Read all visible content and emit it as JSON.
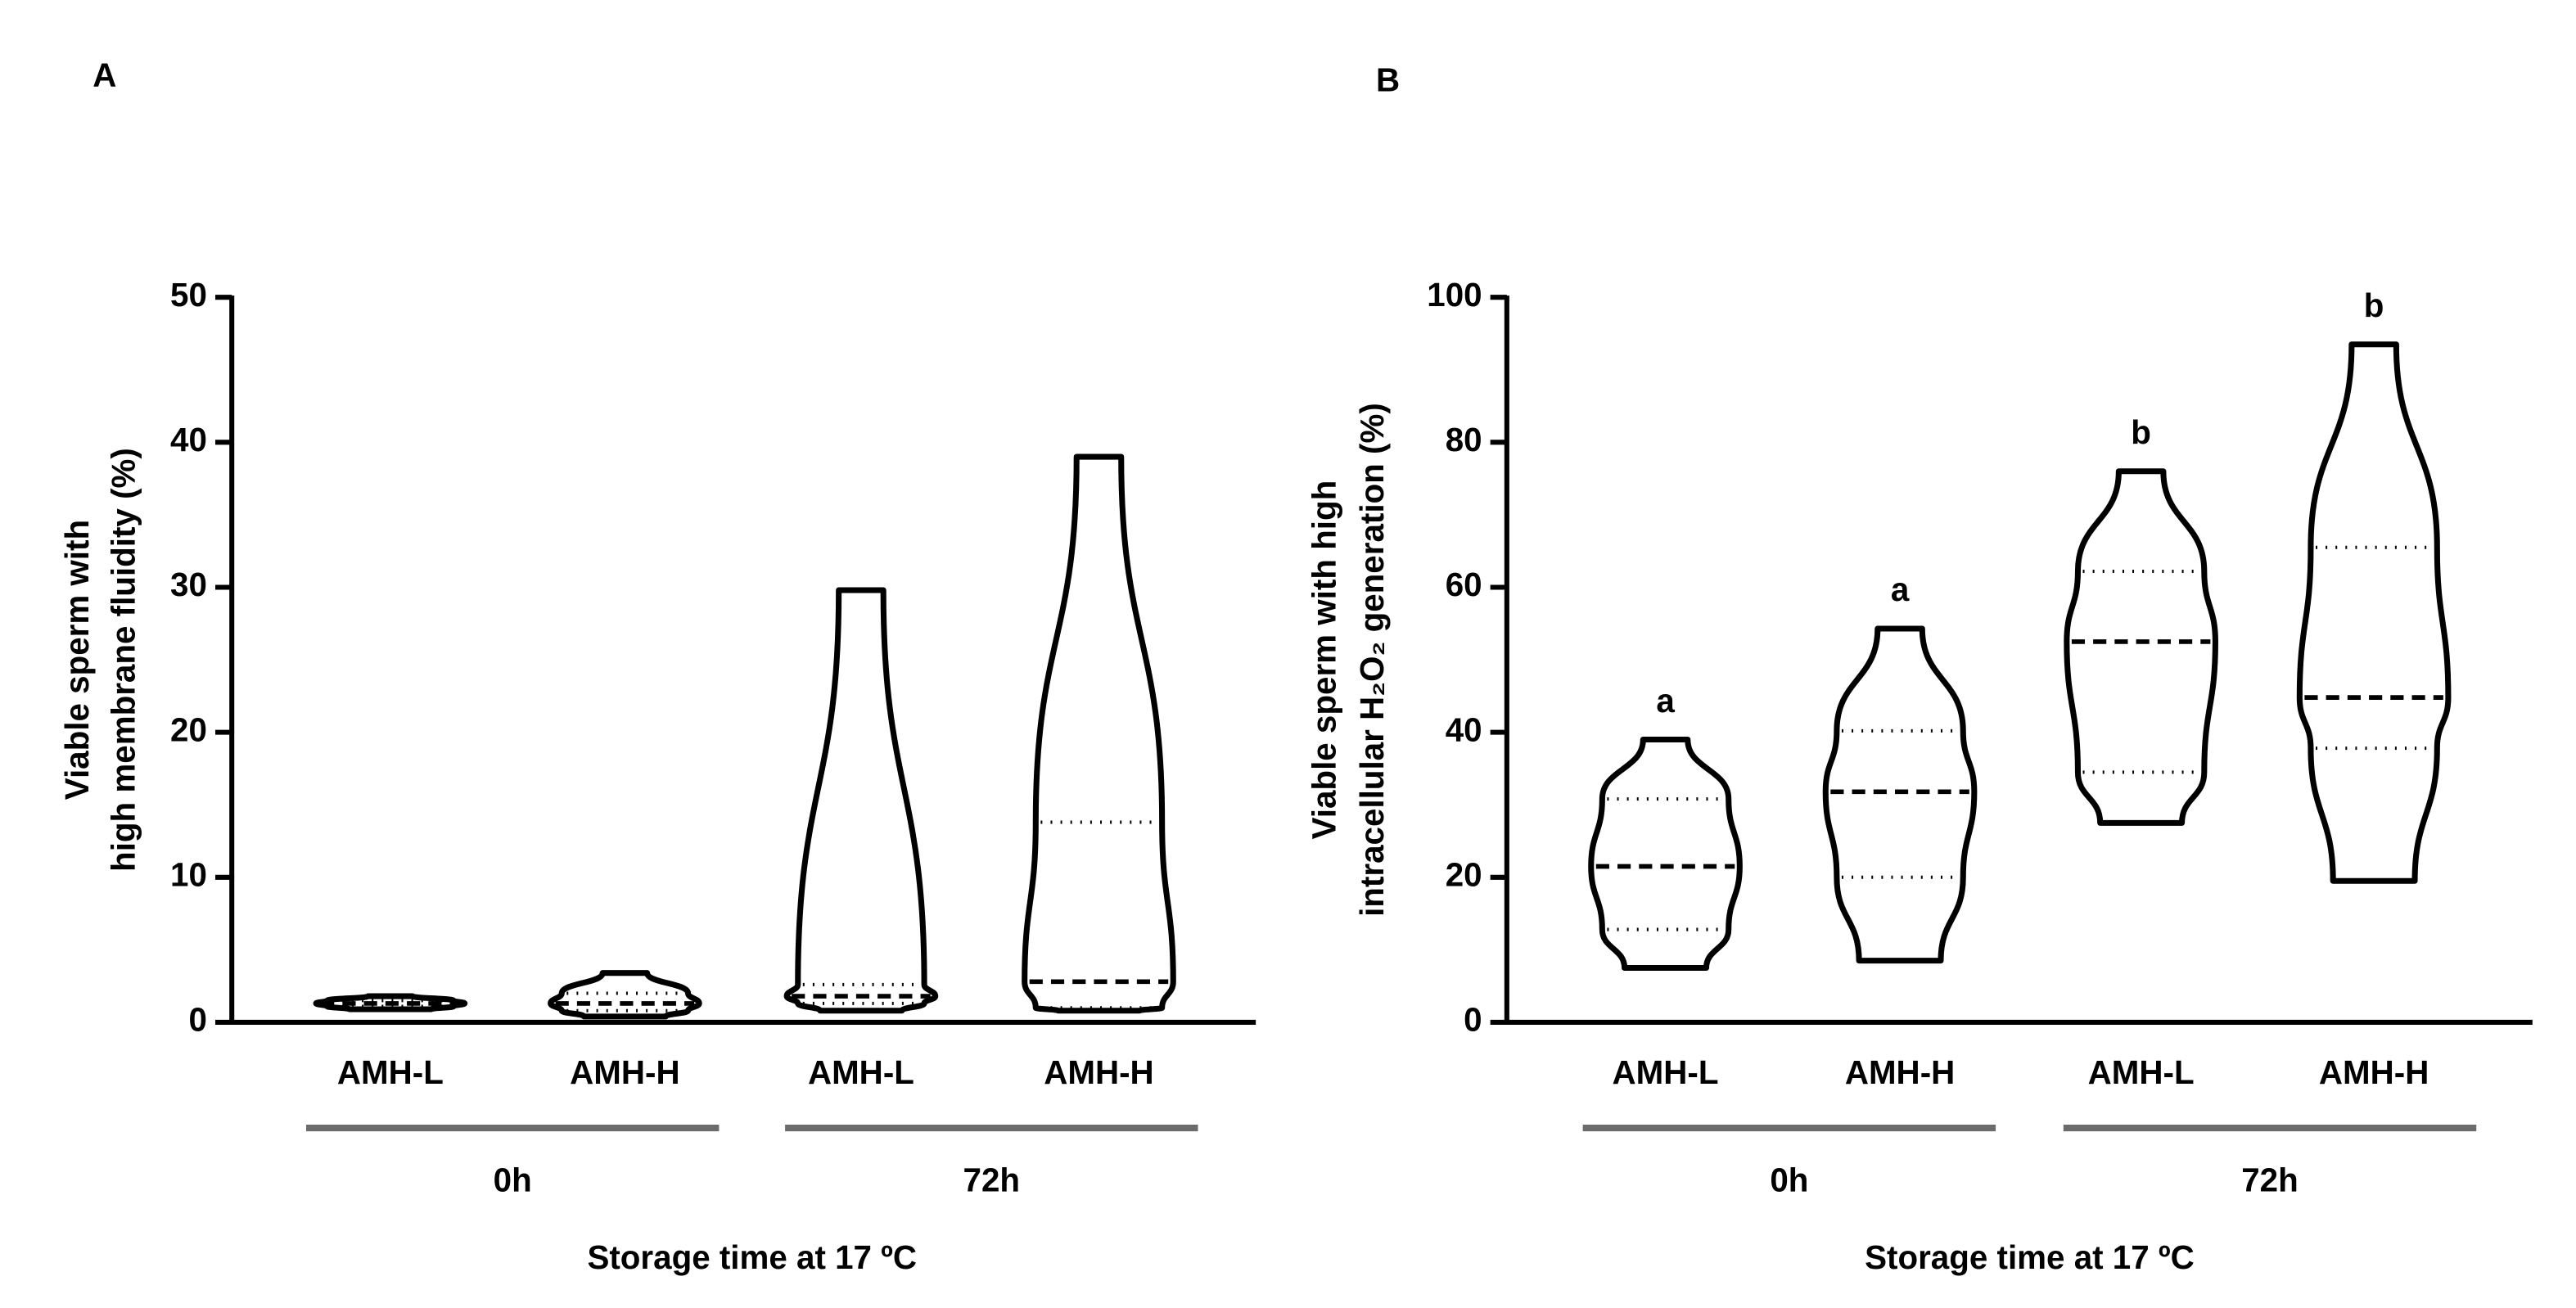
{
  "chart_data": [
    {
      "type": "violin",
      "panel_label": "A",
      "y_label": [
        "Viable sperm with",
        "high membrane fluidity (%)"
      ],
      "x_label": "Storage time at 17 ºC",
      "categories": [
        "AMH-L",
        "AMH-H",
        "AMH-L",
        "AMH-H"
      ],
      "groups": [
        "0h",
        "72h"
      ],
      "min": [
        0.9,
        0.4,
        0.8,
        0.8
      ],
      "q1": [
        1.1,
        0.8,
        1.3,
        1.0
      ],
      "median": [
        1.3,
        1.3,
        1.8,
        2.8
      ],
      "q3": [
        1.5,
        2.0,
        2.6,
        13.8
      ],
      "max": [
        1.8,
        3.4,
        29.8,
        39
      ],
      "color": "#000000",
      "ylim": [
        0,
        50
      ],
      "yticks": [
        0,
        10,
        20,
        30,
        40,
        50
      ]
    },
    {
      "type": "violin",
      "panel_label": "B",
      "y_label": [
        "Viable sperm with high",
        "intracellular H₂O₂ generation (%)"
      ],
      "x_label": "Storage time at 17 ºC",
      "categories": [
        "AMH-L",
        "AMH-H",
        "AMH-L",
        "AMH-H"
      ],
      "groups": [
        "0h",
        "72h"
      ],
      "min": [
        7.5,
        8.5,
        27.5,
        19.5
      ],
      "q1": [
        12.8,
        20,
        34.5,
        37.8
      ],
      "median": [
        21.5,
        31.8,
        52.5,
        44.8
      ],
      "q3": [
        30.8,
        40.2,
        62.2,
        65.5
      ],
      "max": [
        39,
        54.3,
        76,
        93.5
      ],
      "annotations": [
        "a",
        "a",
        "b",
        "b"
      ],
      "color": "#000000",
      "ylim": [
        0,
        100
      ],
      "yticks": [
        0,
        20,
        40,
        60,
        80,
        100
      ]
    }
  ]
}
